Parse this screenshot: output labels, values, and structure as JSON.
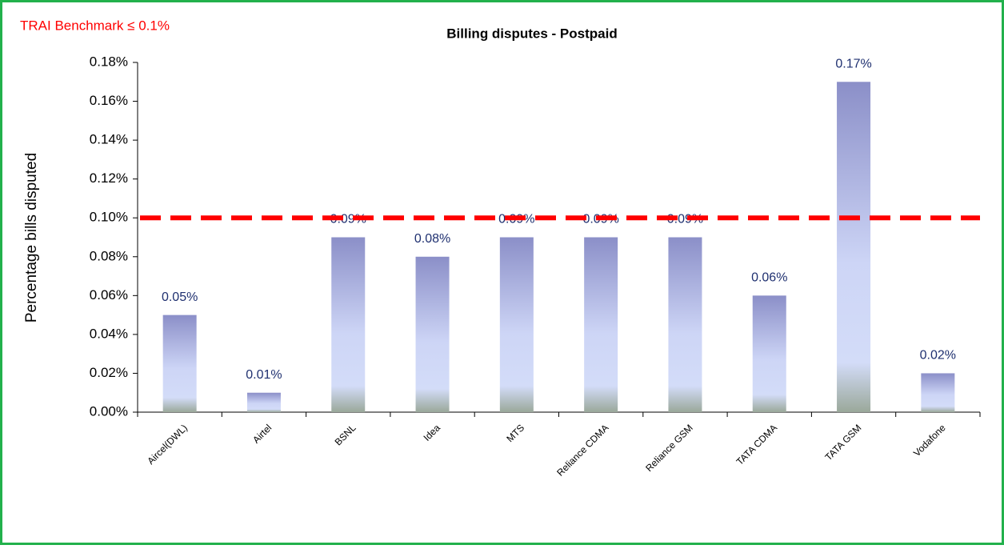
{
  "chart_data": {
    "type": "bar",
    "title": "Billing disputes - Postpaid",
    "annotation": "TRAI Benchmark ≤ 0.1%",
    "benchmark": 0.1,
    "y_label": "Percentage bills disputed",
    "categories": [
      "Aircel(DWL)",
      "Airtel",
      "BSNL",
      "Idea",
      "MTS",
      "Reliance CDMA",
      "Reliance GSM",
      "TATA CDMA",
      "TATA GSM",
      "Vodafone"
    ],
    "values": [
      0.05,
      0.01,
      0.09,
      0.08,
      0.09,
      0.09,
      0.09,
      0.06,
      0.17,
      0.02
    ],
    "value_labels": [
      "0.05%",
      "0.01%",
      "0.09%",
      "0.08%",
      "0.09%",
      "0.09%",
      "0.09%",
      "0.06%",
      "0.17%",
      "0.02%"
    ],
    "color": "#8b8fc8",
    "benchmark_color": "#ff0000",
    "ylim": [
      0,
      0.18
    ],
    "yticks": [
      {
        "value": 0,
        "label": "0.00%"
      },
      {
        "value": 0.02,
        "label": "0.02%"
      },
      {
        "value": 0.04,
        "label": "0.04%"
      },
      {
        "value": 0.06,
        "label": "0.06%"
      },
      {
        "value": 0.08,
        "label": "0.08%"
      },
      {
        "value": 0.1,
        "label": "0.10%"
      },
      {
        "value": 0.12,
        "label": "0.12%"
      },
      {
        "value": 0.14,
        "label": "0.14%"
      },
      {
        "value": 0.16,
        "label": "0.16%"
      },
      {
        "value": 0.18,
        "label": "0.18%"
      }
    ],
    "grid": false
  }
}
